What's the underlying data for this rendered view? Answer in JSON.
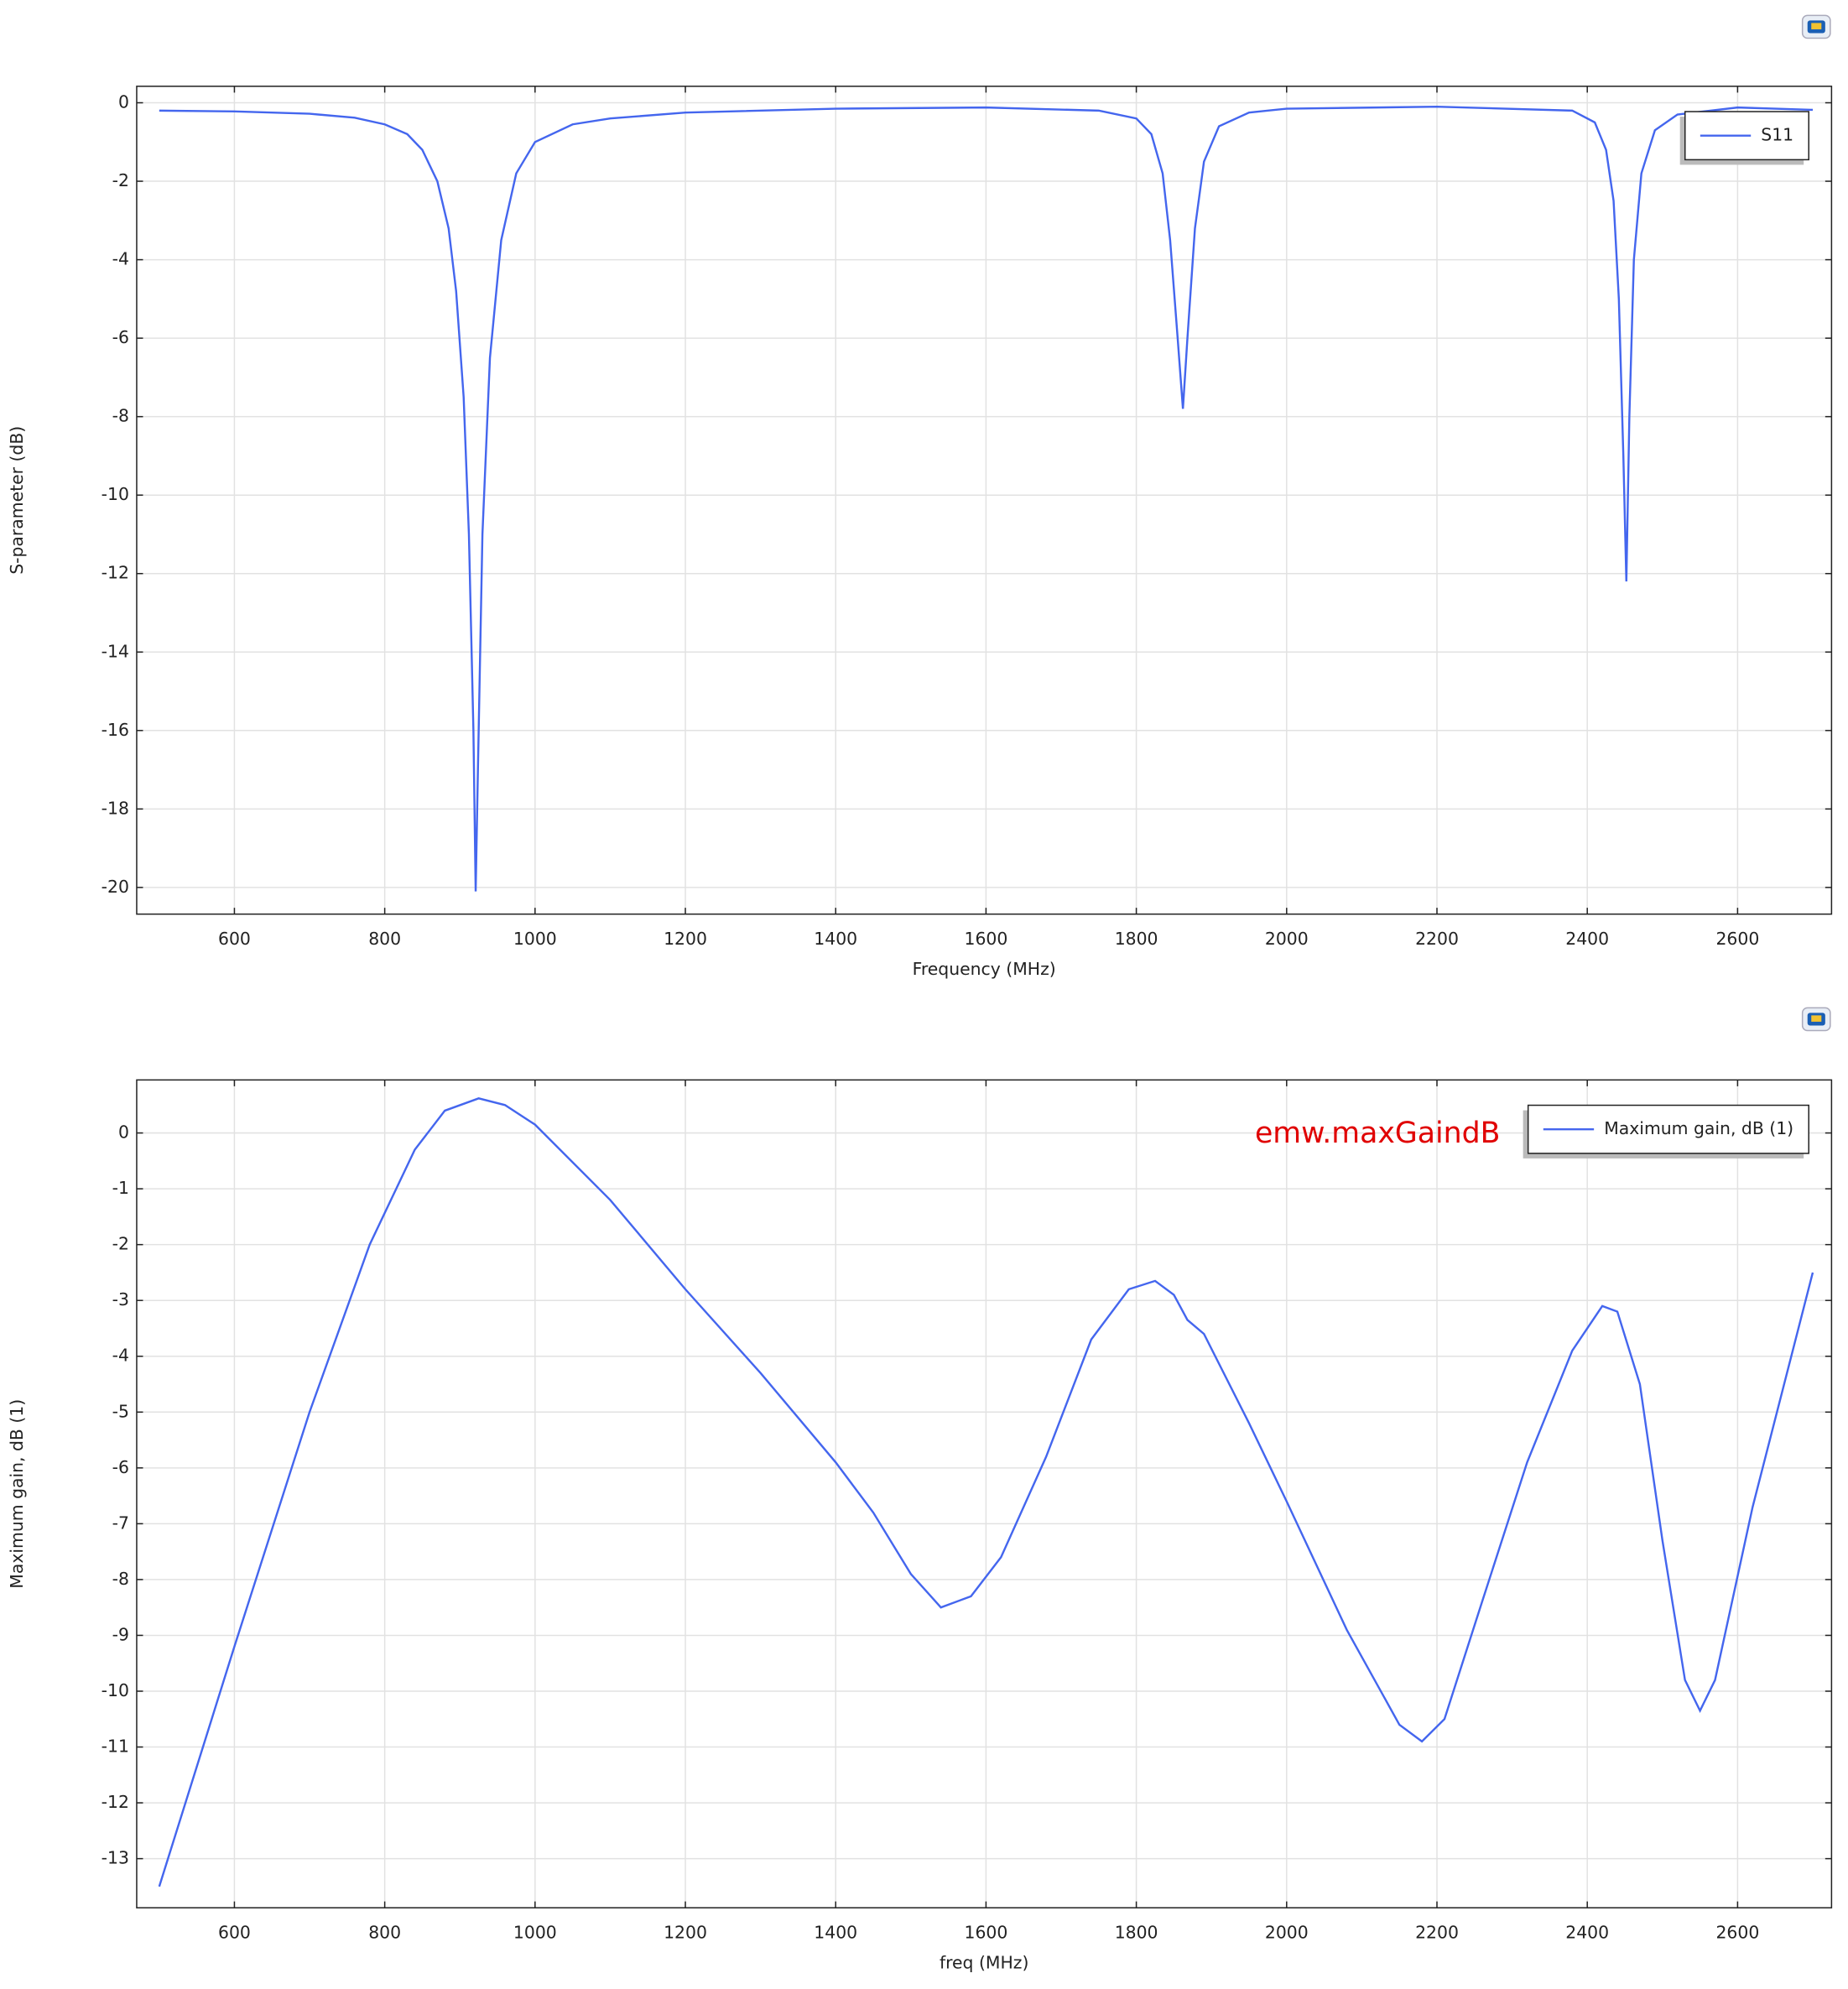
{
  "chart_data": [
    {
      "type": "line",
      "x_label": "Frequency (MHz)",
      "y_label": "S-parameter (dB)",
      "xlim": [
        470,
        2725
      ],
      "ylim": [
        -20.68,
        0.42
      ],
      "xticks": [
        600,
        800,
        1000,
        1200,
        1400,
        1600,
        1800,
        2000,
        2200,
        2400,
        2600
      ],
      "yticks": [
        0,
        -2,
        -4,
        -6,
        -8,
        -10,
        -12,
        -14,
        -16,
        -18,
        -20
      ],
      "grid": true,
      "legend": "upper right",
      "x": [
        500,
        600,
        700,
        760,
        800,
        830,
        850,
        870,
        885,
        895,
        905,
        912,
        918,
        921,
        924,
        930,
        940,
        955,
        975,
        1000,
        1050,
        1100,
        1200,
        1400,
        1600,
        1750,
        1800,
        1820,
        1835,
        1845,
        1855,
        1862,
        1868,
        1878,
        1890,
        1910,
        1950,
        2000,
        2200,
        2380,
        2410,
        2425,
        2435,
        2442,
        2448,
        2452,
        2456,
        2462,
        2472,
        2490,
        2520,
        2600,
        2700
      ],
      "series": [
        {
          "name": "S11",
          "color": "#4466ee",
          "values": [
            -0.2,
            -0.22,
            -0.28,
            -0.38,
            -0.55,
            -0.8,
            -1.2,
            -2.0,
            -3.2,
            -4.8,
            -7.5,
            -11,
            -16,
            -20.1,
            -17,
            -11,
            -6.5,
            -3.5,
            -1.8,
            -1.0,
            -0.55,
            -0.4,
            -0.25,
            -0.15,
            -0.12,
            -0.2,
            -0.4,
            -0.8,
            -1.8,
            -3.5,
            -6,
            -7.8,
            -6,
            -3.2,
            -1.5,
            -0.6,
            -0.25,
            -0.15,
            -0.1,
            -0.2,
            -0.5,
            -1.2,
            -2.5,
            -5,
            -9,
            -12.2,
            -8,
            -4,
            -1.8,
            -0.7,
            -0.3,
            -0.12,
            -0.18
          ]
        }
      ]
    },
    {
      "type": "line",
      "x_label": "freq (MHz)",
      "y_label": "Maximum gain, dB (1)",
      "annotation": "emw.maxGaindB",
      "annotation_color": "#e00000",
      "xlim": [
        470,
        2725
      ],
      "ylim": [
        -13.88,
        0.95
      ],
      "xticks": [
        600,
        800,
        1000,
        1200,
        1400,
        1600,
        1800,
        2000,
        2200,
        2400,
        2600
      ],
      "yticks": [
        0,
        -1,
        -2,
        -3,
        -4,
        -5,
        -6,
        -7,
        -8,
        -9,
        -10,
        -11,
        -12,
        -13
      ],
      "grid": true,
      "legend": "upper right",
      "x": [
        500,
        600,
        700,
        780,
        840,
        880,
        925,
        960,
        1000,
        1100,
        1200,
        1300,
        1400,
        1450,
        1500,
        1540,
        1580,
        1620,
        1680,
        1740,
        1790,
        1825,
        1850,
        1868,
        1890,
        1950,
        2000,
        2080,
        2150,
        2180,
        2210,
        2260,
        2320,
        2380,
        2420,
        2440,
        2470,
        2500,
        2530,
        2550,
        2570,
        2620,
        2700
      ],
      "series": [
        {
          "name": "Maximum gain, dB (1)",
          "color": "#4466ee",
          "values": [
            -13.5,
            -9.2,
            -5.0,
            -2.0,
            -0.3,
            0.4,
            0.62,
            0.5,
            0.15,
            -1.2,
            -2.8,
            -4.3,
            -5.9,
            -6.8,
            -7.9,
            -8.5,
            -8.3,
            -7.6,
            -5.8,
            -3.7,
            -2.8,
            -2.65,
            -2.9,
            -3.35,
            -3.6,
            -5.2,
            -6.6,
            -8.9,
            -10.6,
            -10.9,
            -10.5,
            -8.4,
            -5.9,
            -3.9,
            -3.1,
            -3.2,
            -4.5,
            -7.3,
            -9.8,
            -10.35,
            -9.8,
            -6.7,
            -2.5
          ]
        }
      ]
    }
  ]
}
